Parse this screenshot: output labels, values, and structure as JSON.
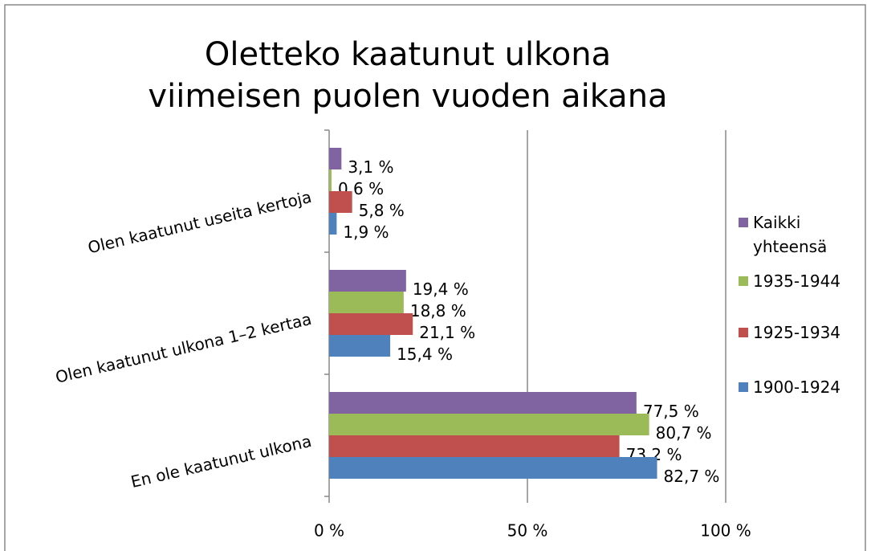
{
  "chart_data": {
    "type": "bar",
    "orientation": "horizontal",
    "title": [
      "Oletteko kaatunut ulkona",
      "viimeisen puolen vuoden aikana"
    ],
    "categories": [
      "Olen kaatunut useita kertoja",
      "Olen kaatunut ulkona 1–2 kertaa",
      "En ole kaatunut ulkona"
    ],
    "series": [
      {
        "name": "Kaikki yhteensä",
        "color": "#8064a2",
        "values": [
          3.1,
          19.4,
          77.5
        ],
        "value_labels": [
          "3,1 %",
          "19,4 %",
          "77,5 %"
        ]
      },
      {
        "name": "1935-1944",
        "color": "#9bbb59",
        "values": [
          0.6,
          18.8,
          80.7
        ],
        "value_labels": [
          "0,6 %",
          "18,8 %",
          "80,7 %"
        ]
      },
      {
        "name": "1925-1934",
        "color": "#c0504d",
        "values": [
          5.8,
          21.1,
          73.2
        ],
        "value_labels": [
          "5,8 %",
          "21,1 %",
          "73,2 %"
        ]
      },
      {
        "name": "1900-1924",
        "color": "#4f81bd",
        "values": [
          1.9,
          15.4,
          82.7
        ],
        "value_labels": [
          "1,9 %",
          "15,4 %",
          "82,7 %"
        ]
      }
    ],
    "xlim": [
      0,
      100
    ],
    "xticks": [
      {
        "value": 0,
        "label": "0 %"
      },
      {
        "value": 50,
        "label": "50 %"
      },
      {
        "value": 100,
        "label": "100 %"
      }
    ],
    "grid": true,
    "legend": "right"
  }
}
